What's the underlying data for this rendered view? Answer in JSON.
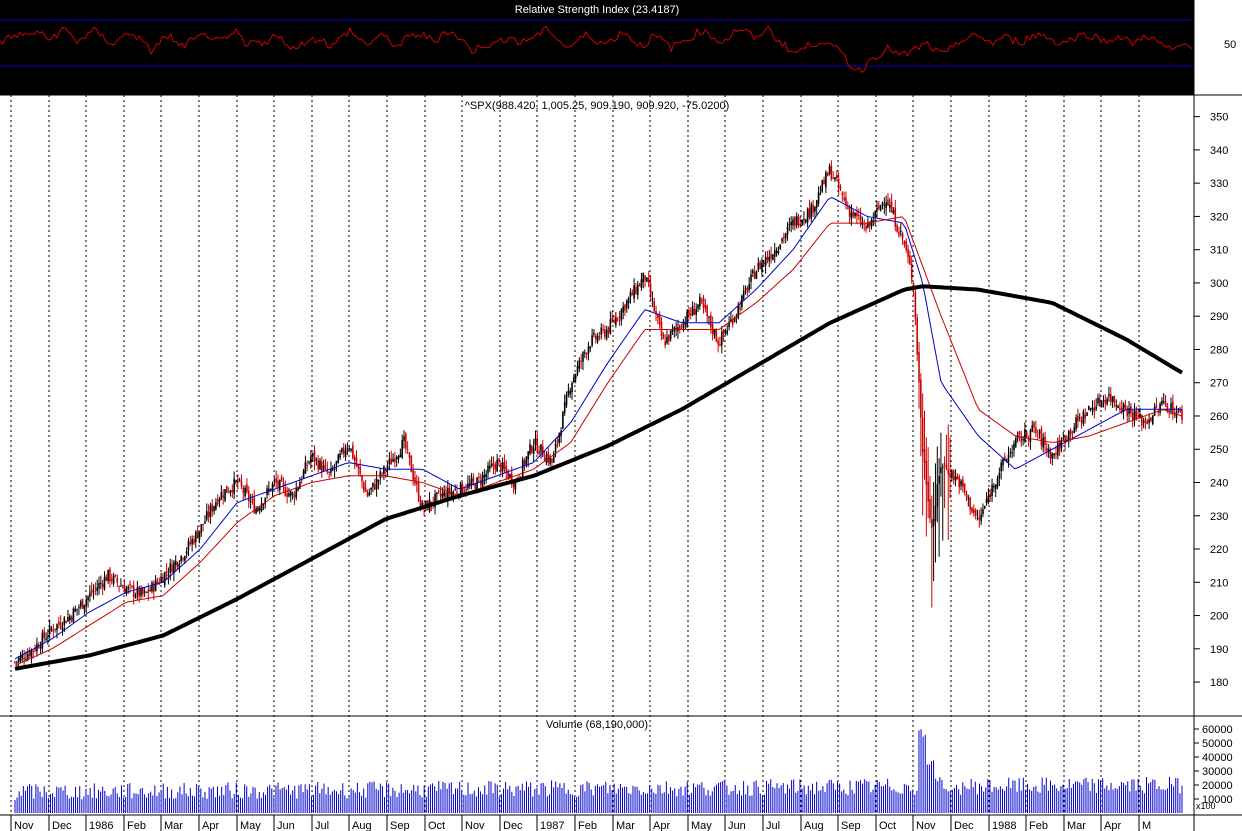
{
  "chart_data": {
    "type": "candlestick",
    "x": [
      "Nov",
      "Dec",
      "1986",
      "Feb",
      "Mar",
      "Apr",
      "May",
      "Jun",
      "Jul",
      "Aug",
      "Sep",
      "Oct",
      "Nov",
      "Dec",
      "1987",
      "Feb",
      "Mar",
      "Apr",
      "May",
      "Jun",
      "Jul",
      "Aug",
      "Sep",
      "Oct",
      "Nov",
      "Dec",
      "1988",
      "Feb",
      "Mar",
      "Apr",
      "M"
    ],
    "rsi_panel": {
      "title": "Relative Strength Index (23.4187)",
      "yticks": [
        "50"
      ],
      "upper_band": 70,
      "lower_band": 30,
      "color": "#d00000",
      "band_color": "#0000cc",
      "values": [
        58,
        62,
        66,
        64,
        70,
        60,
        66,
        72,
        58,
        64,
        70,
        62,
        56,
        64,
        68,
        58,
        48,
        60,
        64,
        52,
        58,
        62,
        66,
        58,
        60,
        70,
        52,
        62,
        56,
        64,
        60,
        50,
        58,
        60,
        62,
        52,
        62,
        70,
        60,
        56,
        64,
        62,
        52,
        62,
        66,
        64,
        58,
        70,
        66,
        58,
        48,
        56,
        54,
        60,
        64,
        56,
        62,
        66,
        72,
        60,
        52,
        58,
        66,
        60,
        56,
        62,
        70,
        58,
        54,
        64,
        60,
        52,
        58,
        62,
        70,
        66,
        58,
        62,
        72,
        68,
        60,
        74,
        62,
        54,
        46,
        52,
        56,
        60,
        52,
        48,
        32,
        28,
        40,
        46,
        52,
        44,
        46,
        52,
        56,
        48,
        44,
        58,
        60,
        64,
        62,
        56,
        64,
        60,
        58,
        64,
        66,
        62,
        56,
        60,
        64,
        66,
        62,
        58,
        64,
        60,
        56,
        66,
        60,
        54,
        48,
        56,
        52
      ]
    },
    "price_panel": {
      "title": "^SPX(988.420, 1,005.25, 909.190, 909.920, -75.0200)",
      "ylim": [
        171,
        355
      ],
      "yticks": [
        "180",
        "190",
        "200",
        "210",
        "220",
        "230",
        "240",
        "250",
        "260",
        "270",
        "280",
        "290",
        "300",
        "310",
        "320",
        "330",
        "340",
        "350"
      ],
      "close_anchors": [
        [
          0,
          186
        ],
        [
          1,
          190
        ],
        [
          2,
          196
        ],
        [
          3,
          200
        ],
        [
          4,
          206
        ],
        [
          5,
          212
        ],
        [
          6,
          208
        ],
        [
          7,
          206
        ],
        [
          8,
          212
        ],
        [
          9,
          218
        ],
        [
          10,
          226
        ],
        [
          11,
          236
        ],
        [
          12,
          240
        ],
        [
          13,
          232
        ],
        [
          14,
          240
        ],
        [
          15,
          236
        ],
        [
          16,
          248
        ],
        [
          17,
          242
        ],
        [
          18,
          252
        ],
        [
          19,
          236
        ],
        [
          20,
          244
        ],
        [
          21,
          252
        ],
        [
          22,
          232
        ],
        [
          23,
          236
        ],
        [
          24,
          238
        ],
        [
          25,
          240
        ],
        [
          26,
          246
        ],
        [
          27,
          240
        ],
        [
          28,
          252
        ],
        [
          29,
          246
        ],
        [
          30,
          270
        ],
        [
          31,
          282
        ],
        [
          32,
          286
        ],
        [
          33,
          294
        ],
        [
          34,
          302
        ],
        [
          35,
          282
        ],
        [
          36,
          288
        ],
        [
          37,
          294
        ],
        [
          38,
          282
        ],
        [
          39,
          292
        ],
        [
          40,
          304
        ],
        [
          41,
          310
        ],
        [
          42,
          318
        ],
        [
          43,
          322
        ],
        [
          44,
          334
        ],
        [
          45,
          322
        ],
        [
          46,
          316
        ],
        [
          47,
          326
        ],
        [
          48,
          312
        ],
        [
          48.5,
          300
        ],
        [
          49,
          250
        ],
        [
          49.5,
          226
        ],
        [
          50,
          246
        ],
        [
          51,
          240
        ],
        [
          52,
          228
        ],
        [
          53,
          242
        ],
        [
          54,
          252
        ],
        [
          55,
          256
        ],
        [
          56,
          248
        ],
        [
          57,
          256
        ],
        [
          58,
          262
        ],
        [
          59,
          266
        ],
        [
          60,
          262
        ],
        [
          61,
          258
        ],
        [
          62,
          264
        ],
        [
          63,
          260
        ]
      ],
      "candle_color_up": "#000000",
      "candle_color_down": "#cc0000",
      "ma_series": [
        {
          "color": "#0000cc",
          "values": [
            [
              0,
              187
            ],
            [
              2,
              193
            ],
            [
              4,
              201
            ],
            [
              6,
              207
            ],
            [
              8,
              210
            ],
            [
              10,
              220
            ],
            [
              12,
              234
            ],
            [
              14,
              238
            ],
            [
              16,
              242
            ],
            [
              18,
              246
            ],
            [
              20,
              244
            ],
            [
              22,
              244
            ],
            [
              24,
              238
            ],
            [
              26,
              242
            ],
            [
              28,
              246
            ],
            [
              30,
              258
            ],
            [
              32,
              276
            ],
            [
              34,
              292
            ],
            [
              36,
              288
            ],
            [
              38,
              288
            ],
            [
              40,
              298
            ],
            [
              42,
              310
            ],
            [
              44,
              326
            ],
            [
              46,
              320
            ],
            [
              48,
              318
            ],
            [
              49,
              300
            ],
            [
              50,
              270
            ],
            [
              52,
              254
            ],
            [
              54,
              244
            ],
            [
              56,
              250
            ],
            [
              58,
              256
            ],
            [
              60,
              262
            ],
            [
              62,
              262
            ],
            [
              63,
              262
            ]
          ]
        },
        {
          "color": "#cc0000",
          "values": [
            [
              0,
              185
            ],
            [
              2,
              190
            ],
            [
              4,
              197
            ],
            [
              6,
              204
            ],
            [
              8,
              206
            ],
            [
              10,
              216
            ],
            [
              12,
              228
            ],
            [
              14,
              236
            ],
            [
              16,
              240
            ],
            [
              18,
              242
            ],
            [
              20,
              242
            ],
            [
              22,
              240
            ],
            [
              24,
              236
            ],
            [
              26,
              240
            ],
            [
              28,
              244
            ],
            [
              30,
              252
            ],
            [
              32,
              270
            ],
            [
              34,
              286
            ],
            [
              36,
              286
            ],
            [
              38,
              286
            ],
            [
              40,
              294
            ],
            [
              42,
              304
            ],
            [
              44,
              318
            ],
            [
              46,
              318
            ],
            [
              48,
              320
            ],
            [
              50,
              290
            ],
            [
              52,
              262
            ],
            [
              54,
              254
            ],
            [
              56,
              252
            ],
            [
              58,
              254
            ],
            [
              60,
              258
            ],
            [
              62,
              262
            ],
            [
              63,
              260
            ]
          ]
        },
        {
          "color": "#000000",
          "values": [
            [
              0,
              184
            ],
            [
              4,
              188
            ],
            [
              8,
              194
            ],
            [
              12,
              205
            ],
            [
              16,
              217
            ],
            [
              20,
              229
            ],
            [
              24,
              236
            ],
            [
              28,
              242
            ],
            [
              32,
              251
            ],
            [
              36,
              262
            ],
            [
              40,
              275
            ],
            [
              44,
              288
            ],
            [
              48,
              298
            ],
            [
              49,
              299
            ],
            [
              52,
              298
            ],
            [
              56,
              294
            ],
            [
              60,
              283
            ],
            [
              63,
              273
            ]
          ]
        }
      ]
    },
    "volume_panel": {
      "title": "Volume (68,190,000)",
      "yticks": [
        "10000",
        "20000",
        "30000",
        "40000",
        "50000",
        "60000"
      ],
      "multiplier_label": "x100",
      "ylim": [
        0,
        65000
      ],
      "color": "#0000cc",
      "spike_index": 49,
      "spike_values": [
        60000,
        38000,
        26000,
        18000
      ]
    }
  }
}
